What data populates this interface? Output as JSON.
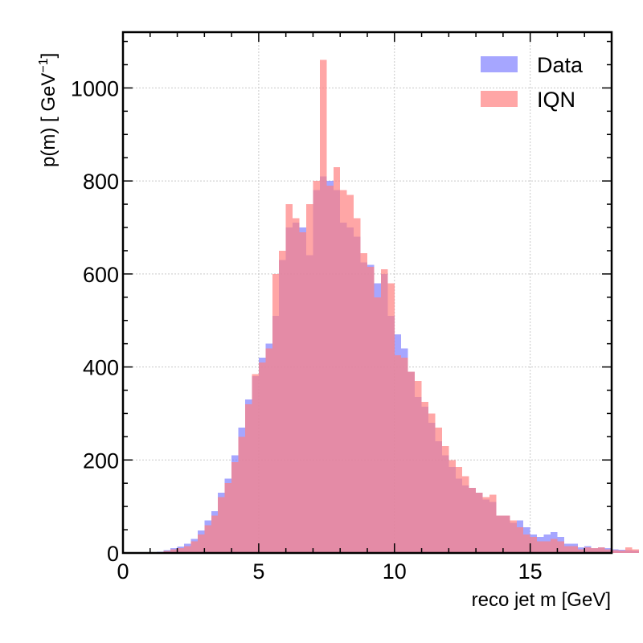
{
  "chart_data": {
    "type": "bar",
    "xlabel": "reco jet  m [GeV]",
    "ylabel": "p(m) [ GeV",
    "ylabel_exponent": "−1",
    "ylabel_close": "]",
    "xlim": [
      0,
      18
    ],
    "ylim": [
      0,
      1120
    ],
    "x_ticks": [
      0,
      5,
      10,
      15
    ],
    "y_ticks": [
      0,
      200,
      400,
      600,
      800,
      1000
    ],
    "grid": true,
    "legend_position": "top-right",
    "bin_edges_start": 1.0,
    "bin_width": 0.25,
    "colors": {
      "Data": "#8080ff",
      "IQN": "#ff8080"
    },
    "series": [
      {
        "name": "Data",
        "values": [
          1,
          3,
          6,
          10,
          14,
          20,
          30,
          48,
          70,
          90,
          130,
          160,
          210,
          270,
          330,
          380,
          420,
          450,
          510,
          630,
          700,
          710,
          700,
          640,
          780,
          810,
          800,
          780,
          710,
          700,
          680,
          625,
          620,
          580,
          600,
          510,
          470,
          440,
          390,
          335,
          315,
          280,
          240,
          210,
          185,
          160,
          145,
          140,
          130,
          115,
          110,
          80,
          80,
          65,
          70,
          55,
          40,
          35,
          40,
          45,
          35,
          20,
          20,
          12,
          15,
          10,
          12,
          10,
          8,
          7,
          6,
          5
        ]
      },
      {
        "name": "IQN",
        "values": [
          0,
          2,
          4,
          8,
          10,
          15,
          25,
          40,
          60,
          80,
          120,
          150,
          195,
          250,
          320,
          385,
          410,
          440,
          600,
          650,
          750,
          720,
          690,
          750,
          800,
          1060,
          790,
          830,
          780,
          770,
          720,
          645,
          615,
          550,
          610,
          580,
          425,
          420,
          390,
          370,
          325,
          300,
          270,
          230,
          200,
          185,
          165,
          140,
          130,
          120,
          125,
          80,
          80,
          70,
          55,
          40,
          35,
          25,
          25,
          30,
          25,
          15,
          15,
          8,
          12,
          10,
          12,
          8,
          6,
          5,
          12,
          8
        ]
      }
    ]
  }
}
